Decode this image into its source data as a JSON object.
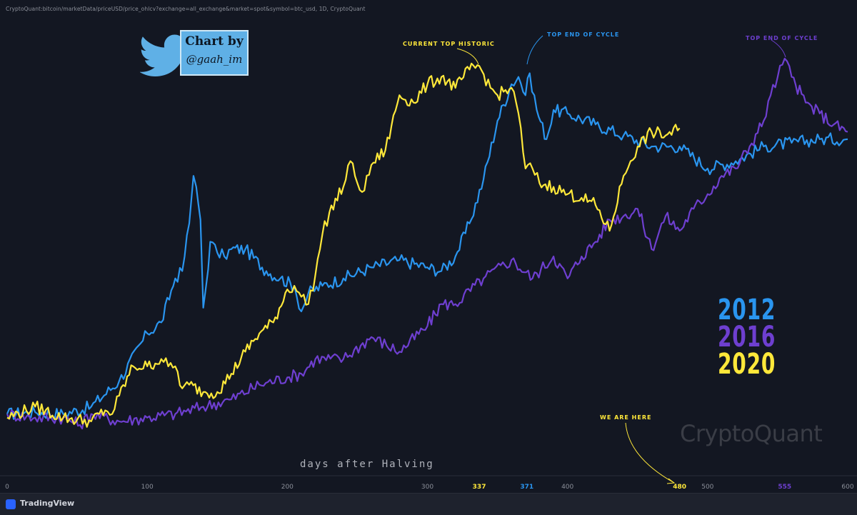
{
  "source_label": "CryptoQuant:bitcoin/marketData/priceUSD/price_ohlcv?exchange=all_exchange&market=spot&symbol=btc_usd, 1D, CryptoQuant",
  "badge": {
    "line1": "Chart by",
    "line2": "@gaah_im",
    "icon": "twitter-bird-icon"
  },
  "watermark": "CryptoQuant",
  "footer": {
    "brand": "TradingView",
    "logo": "tradingview-logo-icon"
  },
  "colors": {
    "background": "#131722",
    "s2012": "#2a95ef",
    "s2016": "#6e3fd0",
    "s2020": "#ffe83a"
  },
  "legend": [
    {
      "label": "2012",
      "color": "#2a95ef"
    },
    {
      "label": "2016",
      "color": "#6e3fd0"
    },
    {
      "label": "2020",
      "color": "#ffe83a"
    }
  ],
  "annotations": [
    {
      "text": "CURRENT TOP HISTORIC",
      "color": "#ffe83a"
    },
    {
      "text": "TOP END OF CYCLE",
      "color": "#2a95ef"
    },
    {
      "text": "TOP END OF CYCLE",
      "color": "#6e3fd0"
    },
    {
      "text": "WE ARE HERE",
      "color": "#ffe83a"
    }
  ],
  "chart_data": {
    "type": "line",
    "title": "",
    "xlabel": "days after Halving",
    "ylabel": "",
    "xlim": [
      0,
      600
    ],
    "grid": false,
    "legend_position": "right",
    "x_ticks": [
      0,
      100,
      200,
      300,
      400,
      500,
      600
    ],
    "highlighted_ticks": [
      {
        "value": 337,
        "color": "#ffe83a"
      },
      {
        "value": 371,
        "color": "#2a95ef"
      },
      {
        "value": 480,
        "color": "#ffe83a"
      },
      {
        "value": 555,
        "color": "#6e3fd0"
      }
    ],
    "series": [
      {
        "name": "2012",
        "color": "#2a95ef",
        "x": [
          0,
          20,
          40,
          60,
          80,
          100,
          110,
          120,
          125,
          130,
          133,
          135,
          138,
          140,
          142,
          145,
          150,
          155,
          160,
          170,
          185,
          195,
          205,
          210,
          215,
          225,
          240,
          260,
          280,
          300,
          310,
          320,
          330,
          340,
          350,
          360,
          365,
          370,
          373,
          378,
          385,
          390,
          400,
          420,
          440,
          460,
          480,
          500,
          520,
          540,
          560,
          580,
          600
        ],
        "y": [
          0.03,
          0.035,
          0.03,
          0.05,
          0.12,
          0.25,
          0.28,
          0.4,
          0.42,
          0.55,
          0.68,
          0.65,
          0.56,
          0.32,
          0.38,
          0.5,
          0.47,
          0.46,
          0.48,
          0.48,
          0.42,
          0.4,
          0.38,
          0.31,
          0.36,
          0.38,
          0.4,
          0.43,
          0.45,
          0.43,
          0.42,
          0.46,
          0.55,
          0.67,
          0.83,
          0.93,
          0.95,
          0.9,
          0.96,
          0.86,
          0.78,
          0.86,
          0.85,
          0.82,
          0.79,
          0.76,
          0.76,
          0.7,
          0.72,
          0.76,
          0.77,
          0.78,
          0.78
        ]
      },
      {
        "name": "2016",
        "color": "#6e3fd0",
        "x": [
          0,
          20,
          40,
          52,
          60,
          80,
          100,
          120,
          140,
          160,
          180,
          200,
          210,
          220,
          240,
          260,
          280,
          300,
          310,
          320,
          340,
          360,
          375,
          390,
          400,
          410,
          420,
          430,
          440,
          450,
          460,
          470,
          480,
          490,
          500,
          510,
          520,
          530,
          540,
          545,
          550,
          555,
          560,
          570,
          580,
          590,
          600
        ],
        "y": [
          0.03,
          0.02,
          0.02,
          0.0,
          0.03,
          0.01,
          0.02,
          0.03,
          0.05,
          0.07,
          0.11,
          0.13,
          0.14,
          0.18,
          0.18,
          0.24,
          0.2,
          0.27,
          0.33,
          0.33,
          0.4,
          0.45,
          0.4,
          0.46,
          0.4,
          0.46,
          0.5,
          0.56,
          0.57,
          0.59,
          0.48,
          0.57,
          0.53,
          0.59,
          0.63,
          0.68,
          0.7,
          0.76,
          0.83,
          0.9,
          0.95,
          1.0,
          0.95,
          0.88,
          0.85,
          0.82,
          0.8
        ]
      },
      {
        "name": "2020",
        "color": "#ffe83a",
        "x": [
          0,
          20,
          40,
          60,
          70,
          75,
          80,
          90,
          100,
          110,
          115,
          120,
          125,
          130,
          140,
          150,
          160,
          170,
          180,
          190,
          200,
          205,
          210,
          215,
          220,
          225,
          230,
          240,
          245,
          250,
          255,
          260,
          270,
          280,
          290,
          300,
          310,
          320,
          330,
          337,
          345,
          350,
          360,
          365,
          370,
          375,
          380,
          390,
          400,
          410,
          420,
          430,
          440,
          445,
          450,
          460,
          470,
          480
        ],
        "y": [
          0.02,
          0.05,
          0.02,
          0.01,
          0.04,
          0.03,
          0.08,
          0.16,
          0.16,
          0.18,
          0.16,
          0.16,
          0.1,
          0.11,
          0.09,
          0.09,
          0.14,
          0.2,
          0.25,
          0.28,
          0.37,
          0.38,
          0.35,
          0.33,
          0.41,
          0.52,
          0.58,
          0.65,
          0.72,
          0.66,
          0.64,
          0.71,
          0.75,
          0.9,
          0.88,
          0.93,
          0.95,
          0.92,
          0.97,
          0.98,
          0.92,
          0.9,
          0.92,
          0.85,
          0.7,
          0.7,
          0.66,
          0.65,
          0.63,
          0.62,
          0.6,
          0.53,
          0.68,
          0.72,
          0.76,
          0.8,
          0.79,
          0.81
        ]
      }
    ]
  }
}
